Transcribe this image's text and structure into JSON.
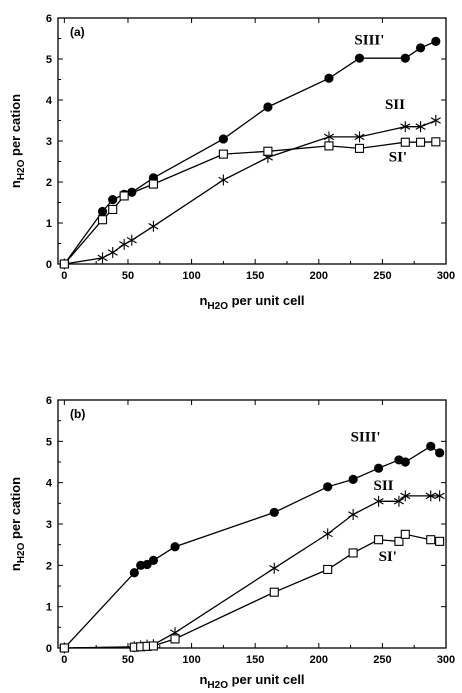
{
  "chart_data": [
    {
      "type": "line",
      "panel_label": "(a)",
      "xlabel": {
        "main": "n",
        "sub": "H2O",
        "rest": " per unit cell"
      },
      "ylabel": {
        "main": "n",
        "sub": "H2O",
        "rest": " per cation"
      },
      "xlim": [
        -5,
        300
      ],
      "ylim": [
        0,
        6
      ],
      "xticks": [
        0,
        50,
        100,
        150,
        200,
        250,
        300
      ],
      "yticks": [
        0,
        1,
        2,
        3,
        4,
        5,
        6
      ],
      "series": [
        {
          "name": "SIII'",
          "marker": "filled-circle",
          "label_anchor": [
            228,
            5.35
          ],
          "x": [
            0,
            30,
            38,
            47,
            53,
            70,
            125,
            160,
            208,
            232,
            268,
            280,
            292
          ],
          "y": [
            0,
            1.28,
            1.57,
            1.7,
            1.75,
            2.1,
            3.05,
            3.83,
            4.53,
            5.02,
            5.02,
            5.27,
            5.43
          ]
        },
        {
          "name": "SII",
          "marker": "asterisk",
          "label_anchor": [
            252,
            3.78
          ],
          "x": [
            0,
            30,
            38,
            47,
            53,
            70,
            125,
            160,
            208,
            232,
            268,
            280,
            292
          ],
          "y": [
            0,
            0.15,
            0.28,
            0.48,
            0.58,
            0.92,
            2.05,
            2.6,
            3.1,
            3.1,
            3.35,
            3.35,
            3.5
          ]
        },
        {
          "name": "SI'",
          "marker": "open-square",
          "label_anchor": [
            255,
            2.5
          ],
          "x": [
            0,
            30,
            38,
            47,
            70,
            125,
            160,
            208,
            232,
            268,
            280,
            292
          ],
          "y": [
            0,
            1.08,
            1.33,
            1.66,
            1.95,
            2.68,
            2.75,
            2.88,
            2.82,
            2.97,
            2.97,
            2.98
          ]
        }
      ]
    },
    {
      "type": "line",
      "panel_label": "(b)",
      "xlabel": {
        "main": "n",
        "sub": "H2O",
        "rest": " per unit cell"
      },
      "ylabel": {
        "main": "n",
        "sub": "H2O",
        "rest": " per cation"
      },
      "xlim": [
        -5,
        300
      ],
      "ylim": [
        0,
        6
      ],
      "xticks": [
        0,
        50,
        100,
        150,
        200,
        250,
        300
      ],
      "yticks": [
        0,
        1,
        2,
        3,
        4,
        5,
        6
      ],
      "series": [
        {
          "name": "SIII'",
          "marker": "filled-circle",
          "label_anchor": [
            225,
            5.0
          ],
          "x": [
            0,
            55,
            60,
            65,
            70,
            87,
            165,
            207,
            227,
            247,
            263,
            268,
            288,
            295
          ],
          "y": [
            0,
            1.82,
            2.0,
            2.02,
            2.12,
            2.45,
            3.28,
            3.9,
            4.08,
            4.35,
            4.55,
            4.5,
            4.88,
            4.72
          ]
        },
        {
          "name": "SII",
          "marker": "asterisk",
          "label_anchor": [
            243,
            3.82
          ],
          "x": [
            0,
            55,
            60,
            65,
            70,
            87,
            165,
            207,
            227,
            247,
            263,
            268,
            288,
            295
          ],
          "y": [
            0,
            0.03,
            0.05,
            0.07,
            0.08,
            0.37,
            1.93,
            2.76,
            3.23,
            3.55,
            3.55,
            3.68,
            3.68,
            3.68
          ]
        },
        {
          "name": "SI'",
          "marker": "open-square",
          "label_anchor": [
            247,
            2.1
          ],
          "x": [
            0,
            55,
            60,
            65,
            70,
            87,
            165,
            207,
            227,
            247,
            263,
            268,
            288,
            295
          ],
          "y": [
            0,
            0.02,
            0.03,
            0.04,
            0.05,
            0.22,
            1.35,
            1.9,
            2.3,
            2.62,
            2.58,
            2.75,
            2.62,
            2.58
          ]
        }
      ]
    }
  ]
}
